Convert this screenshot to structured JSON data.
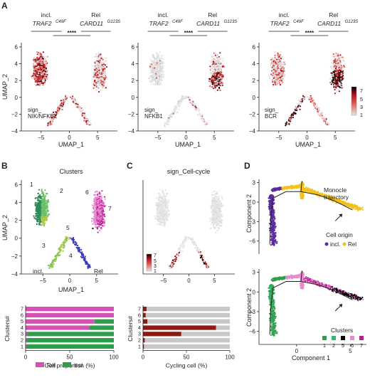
{
  "panel_letters": {
    "a": "A",
    "b": "B",
    "c": "C",
    "d": "D"
  },
  "colors": {
    "incl": "#2e9e4a",
    "rel": "#d64fb2",
    "trajectory_incl": "#5b2a9e",
    "trajectory_rel": "#f2c21b",
    "grey": "#d4d4d4",
    "heat_low": "#cfcfcf",
    "heat_mid": "#d62828",
    "heat_high": "#000000",
    "cycling": "#8b1a10"
  },
  "panel_a": {
    "bracket_left_line1": "incl.",
    "bracket_left_line2": "TRAF2",
    "bracket_left_sup": "C49F",
    "bracket_right_line1": "Rel",
    "bracket_right_line2": "CARD11",
    "bracket_right_sup": "G123S",
    "significance": "****",
    "xlabel": "UMAP_1",
    "ylabel": "UMAP_2",
    "plots": [
      {
        "sign_line1": "sign_",
        "sign_line2": "NIK/NFKB2"
      },
      {
        "sign_line1": "sign_",
        "sign_line2": "NFKB1"
      },
      {
        "sign_line1": "sign_",
        "sign_line2": "BCR"
      }
    ],
    "colorbar_ticks": [
      "7",
      "5",
      "3",
      "1"
    ]
  },
  "panel_b": {
    "title": "Clusters",
    "xlabel": "UMAP_1",
    "ylabel": "UMAP_2",
    "region_incl": "incl.",
    "region_rel": "Rel"
  },
  "panel_c": {
    "title": "sign_Cell-cycle",
    "colorbar_ticks": [
      "7",
      "5",
      "3",
      "1"
    ]
  },
  "panel_d": {
    "ylabel": "Component 2",
    "xlabel": "Component 1",
    "monocle_line1": "Monocle",
    "monocle_line2": "trajectory",
    "cell_origin": "Cell origin",
    "legend_incl": "incl.",
    "legend_rel": "Rel",
    "clusters_title": "Clusters"
  },
  "chart_data": [
    {
      "type": "scatter",
      "title": "",
      "xlabel": "UMAP_1",
      "ylabel": "UMAP_2",
      "xlim": [
        -8.5,
        8.5
      ],
      "ylim": [
        -4,
        6.5
      ],
      "xticks": [
        -5,
        0,
        5
      ],
      "yticks": [
        6,
        4,
        2,
        0,
        -2,
        -4
      ],
      "annotation": "sign_ NIK/NFKB2"
    },
    {
      "type": "scatter",
      "title": "",
      "xlabel": "UMAP_1",
      "ylabel": "",
      "xlim": [
        -8.5,
        8.5
      ],
      "ylim": [
        -4,
        6.5
      ],
      "xticks": [
        -5,
        0,
        5
      ],
      "yticks": [
        6,
        4,
        2,
        0,
        -2,
        -4
      ],
      "annotation": "sign_ NFKB1"
    },
    {
      "type": "scatter",
      "title": "",
      "xlabel": "UMAP_1",
      "ylabel": "",
      "xlim": [
        -8.5,
        8.5
      ],
      "ylim": [
        -4,
        6.5
      ],
      "xticks": [
        -5,
        0,
        5
      ],
      "yticks": [
        6,
        4,
        2,
        0,
        -2,
        -4
      ],
      "annotation": "sign_ BCR",
      "colorbar": [
        7,
        5,
        3,
        1
      ]
    },
    {
      "type": "scatter",
      "title": "Clusters",
      "xlabel": "UMAP_1",
      "ylabel": "UMAP_2",
      "xlim": [
        -9,
        9
      ],
      "ylim": [
        -4,
        6.5
      ],
      "xticks": [
        -5,
        0,
        5
      ],
      "yticks": [
        6,
        4,
        2,
        0,
        -2,
        -4
      ],
      "clusters": [
        "1",
        "2",
        "3",
        "4",
        "5",
        "6",
        "7"
      ]
    },
    {
      "type": "scatter",
      "title": "sign_Cell-cycle",
      "xlabel": "",
      "ylabel": "",
      "xlim": [
        -9,
        9
      ],
      "ylim": [
        -4,
        6.5
      ],
      "xticks": [
        -5,
        0,
        5
      ],
      "colorbar": [
        7,
        5,
        3,
        1
      ]
    },
    {
      "type": "bar",
      "orientation": "horizontal",
      "stacked": true,
      "xlabel": "Cell proportion (%)",
      "ylabel": "Clusters#",
      "xlim": [
        0,
        100
      ],
      "xticks": [
        0,
        50,
        100
      ],
      "categories": [
        "7",
        "6",
        "5",
        "4",
        "3",
        "2",
        "1"
      ],
      "series": [
        {
          "name": "Rel",
          "values": [
            100,
            100,
            78,
            72,
            2,
            1,
            1
          ]
        },
        {
          "name": "incl.",
          "values": [
            0,
            0,
            22,
            28,
            98,
            99,
            99
          ]
        }
      ]
    },
    {
      "type": "bar",
      "orientation": "horizontal",
      "xlabel": "Cycling cell (%)",
      "ylabel": "Clusters#",
      "xlim": [
        0,
        100
      ],
      "xticks": [
        0,
        50,
        100
      ],
      "categories": [
        "7",
        "6",
        "5",
        "4",
        "3",
        "2",
        "1"
      ],
      "values": [
        4,
        3,
        5,
        84,
        44,
        2,
        1
      ]
    },
    {
      "type": "scatter",
      "title": "",
      "xlabel": "",
      "ylabel": "Component 2",
      "xlim": [
        -3.5,
        6.5
      ],
      "ylim": [
        -8,
        3.5
      ],
      "xticks": [
        0,
        5
      ],
      "yticks": [
        3,
        0,
        -3,
        -6
      ],
      "legend_title": "Cell origin",
      "series": [
        {
          "name": "incl."
        },
        {
          "name": "Rel"
        }
      ]
    },
    {
      "type": "scatter",
      "title": "",
      "xlabel": "Component 1",
      "ylabel": "Component 2",
      "xlim": [
        -3.5,
        6.5
      ],
      "ylim": [
        -8,
        3.5
      ],
      "xticks": [
        0,
        5
      ],
      "yticks": [
        3,
        0,
        -3,
        -6
      ],
      "legend_title": "Clusters",
      "series": [
        {
          "name": "1"
        },
        {
          "name": "2"
        },
        {
          "name": "5"
        },
        {
          "name": "6"
        },
        {
          "name": "7"
        }
      ]
    }
  ]
}
